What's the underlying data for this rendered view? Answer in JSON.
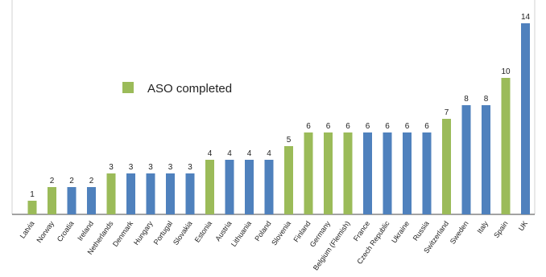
{
  "chart_data": {
    "type": "bar",
    "categories": [
      "Latvia",
      "Norway",
      "Croatia",
      "Ireland",
      "Netherlands",
      "Denmark",
      "Hungary",
      "Portugal",
      "Slovakia",
      "Estonia",
      "Austria",
      "Lithuania",
      "Poland",
      "Slovenia",
      "Finland",
      "Germany",
      "Belgium (Flemish)",
      "France",
      "Czech Republic",
      "Ukraine",
      "Russia",
      "Switzerland",
      "Sweden",
      "Italy",
      "Spain",
      "UK"
    ],
    "values": [
      1,
      2,
      2,
      2,
      3,
      3,
      3,
      3,
      3,
      4,
      4,
      4,
      4,
      5,
      6,
      6,
      6,
      6,
      6,
      6,
      6,
      7,
      8,
      8,
      10,
      14
    ],
    "aso_completed": [
      true,
      true,
      false,
      false,
      true,
      false,
      false,
      false,
      false,
      true,
      false,
      false,
      false,
      true,
      true,
      true,
      true,
      false,
      false,
      false,
      false,
      true,
      false,
      false,
      true,
      false
    ],
    "ylim": [
      0,
      14
    ],
    "grid": false,
    "legend": {
      "label": "ASO completed",
      "placement": "upper-left"
    },
    "colors": {
      "aso_completed": "#9bbb59",
      "other": "#4f81bd"
    }
  }
}
